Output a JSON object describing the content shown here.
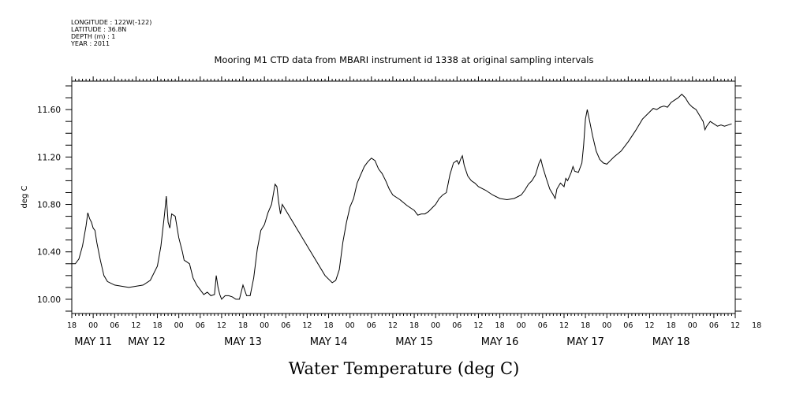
{
  "meta": {
    "longitude": "LONGITUDE : 122W(-122)",
    "latitude": "LATITUDE : 36.8N",
    "depth": "DEPTH (m) : 1",
    "year": "YEAR : 2011"
  },
  "chart_data": {
    "type": "line",
    "title": "Mooring M1 CTD data from MBARI instrument id 1338 at original sampling intervals",
    "xlabel": "Water Temperature (deg C)",
    "ylabel": "deg C",
    "x_unit": "hours since 2011-05-10 18:00",
    "xlim": [
      0,
      186
    ],
    "ylim": [
      9.88,
      11.84
    ],
    "yticks": [
      10.0,
      10.4,
      10.8,
      11.2,
      11.6
    ],
    "ytick_labels": [
      "10.00",
      "10.40",
      "10.80",
      "11.20",
      "11.60"
    ],
    "hour_tick_labels": [
      "18",
      "00",
      "06",
      "12",
      "18",
      "00",
      "06",
      "12",
      "18",
      "00",
      "06",
      "12",
      "18",
      "00",
      "06",
      "12",
      "18",
      "00",
      "06",
      "12",
      "18",
      "00",
      "06",
      "12",
      "18",
      "00",
      "06",
      "12",
      "18",
      "00",
      "06",
      "12",
      "18"
    ],
    "date_labels": [
      {
        "text": "MAY 11",
        "x": 6
      },
      {
        "text": "MAY 12",
        "x": 21
      },
      {
        "text": "MAY 13",
        "x": 48
      },
      {
        "text": "MAY 14",
        "x": 72
      },
      {
        "text": "MAY 15",
        "x": 96
      },
      {
        "text": "MAY 16",
        "x": 120
      },
      {
        "text": "MAY 17",
        "x": 144
      },
      {
        "text": "MAY 18",
        "x": 168
      }
    ],
    "grid": false,
    "series": [
      {
        "points": [
          [
            0,
            10.3
          ],
          [
            1,
            10.3
          ],
          [
            2,
            10.34
          ],
          [
            3,
            10.45
          ],
          [
            4,
            10.62
          ],
          [
            4.5,
            10.73
          ],
          [
            5,
            10.68
          ],
          [
            5.5,
            10.65
          ],
          [
            6,
            10.6
          ],
          [
            6.5,
            10.58
          ],
          [
            7,
            10.48
          ],
          [
            8,
            10.33
          ],
          [
            9,
            10.2
          ],
          [
            10,
            10.15
          ],
          [
            12,
            10.12
          ],
          [
            14,
            10.11
          ],
          [
            16,
            10.1
          ],
          [
            18,
            10.11
          ],
          [
            20,
            10.12
          ],
          [
            22,
            10.16
          ],
          [
            24,
            10.28
          ],
          [
            25,
            10.45
          ],
          [
            26,
            10.72
          ],
          [
            26.5,
            10.87
          ],
          [
            27,
            10.65
          ],
          [
            27.5,
            10.6
          ],
          [
            28,
            10.72
          ],
          [
            29,
            10.7
          ],
          [
            30,
            10.52
          ],
          [
            31,
            10.4
          ],
          [
            31.5,
            10.33
          ],
          [
            32,
            10.32
          ],
          [
            33,
            10.3
          ],
          [
            34,
            10.18
          ],
          [
            35,
            10.12
          ],
          [
            36,
            10.08
          ],
          [
            37,
            10.04
          ],
          [
            38,
            10.06
          ],
          [
            39,
            10.03
          ],
          [
            40,
            10.04
          ],
          [
            40.5,
            10.2
          ],
          [
            41,
            10.1
          ],
          [
            41.5,
            10.04
          ],
          [
            42,
            10.0
          ],
          [
            43,
            10.03
          ],
          [
            44,
            10.03
          ],
          [
            45,
            10.02
          ],
          [
            46,
            10.0
          ],
          [
            47,
            10.0
          ],
          [
            48,
            10.12
          ],
          [
            49,
            10.03
          ],
          [
            50,
            10.03
          ],
          [
            51,
            10.18
          ],
          [
            52,
            10.42
          ],
          [
            53,
            10.58
          ],
          [
            54,
            10.63
          ],
          [
            55,
            10.73
          ],
          [
            56,
            10.8
          ],
          [
            57,
            10.97
          ],
          [
            57.5,
            10.95
          ],
          [
            58,
            10.82
          ],
          [
            58.5,
            10.72
          ],
          [
            59,
            10.8
          ],
          [
            65,
            10.5
          ],
          [
            71,
            10.2
          ],
          [
            73,
            10.14
          ],
          [
            74,
            10.16
          ],
          [
            75,
            10.25
          ],
          [
            76,
            10.48
          ],
          [
            77,
            10.65
          ],
          [
            78,
            10.78
          ],
          [
            79,
            10.85
          ],
          [
            80,
            10.98
          ],
          [
            81,
            11.05
          ],
          [
            82,
            11.12
          ],
          [
            83,
            11.16
          ],
          [
            84,
            11.19
          ],
          [
            85,
            11.17
          ],
          [
            86,
            11.1
          ],
          [
            87,
            11.06
          ],
          [
            88,
            11.0
          ],
          [
            89,
            10.93
          ],
          [
            90,
            10.88
          ],
          [
            92,
            10.84
          ],
          [
            94,
            10.79
          ],
          [
            96,
            10.75
          ],
          [
            97,
            10.71
          ],
          [
            98,
            10.72
          ],
          [
            99,
            10.72
          ],
          [
            100,
            10.74
          ],
          [
            101,
            10.77
          ],
          [
            102,
            10.8
          ],
          [
            103,
            10.85
          ],
          [
            104,
            10.88
          ],
          [
            105,
            10.9
          ],
          [
            106,
            11.05
          ],
          [
            107,
            11.15
          ],
          [
            108,
            11.17
          ],
          [
            108.5,
            11.14
          ],
          [
            109,
            11.18
          ],
          [
            109.5,
            11.21
          ],
          [
            110,
            11.13
          ],
          [
            111,
            11.04
          ],
          [
            112,
            11.0
          ],
          [
            113,
            10.98
          ],
          [
            114,
            10.95
          ],
          [
            116,
            10.92
          ],
          [
            118,
            10.88
          ],
          [
            120,
            10.85
          ],
          [
            122,
            10.84
          ],
          [
            124,
            10.85
          ],
          [
            126,
            10.88
          ],
          [
            127,
            10.92
          ],
          [
            128,
            10.97
          ],
          [
            129,
            11.0
          ],
          [
            130,
            11.05
          ],
          [
            131,
            11.15
          ],
          [
            131.5,
            11.18
          ],
          [
            132,
            11.12
          ],
          [
            133,
            11.02
          ],
          [
            134,
            10.93
          ],
          [
            135,
            10.88
          ],
          [
            135.5,
            10.85
          ],
          [
            136,
            10.93
          ],
          [
            137,
            10.98
          ],
          [
            138,
            10.95
          ],
          [
            138.5,
            11.02
          ],
          [
            139,
            11.0
          ],
          [
            140,
            11.07
          ],
          [
            140.5,
            11.12
          ],
          [
            141,
            11.08
          ],
          [
            142,
            11.07
          ],
          [
            143,
            11.15
          ],
          [
            143.5,
            11.3
          ],
          [
            144,
            11.52
          ],
          [
            144.5,
            11.6
          ],
          [
            145,
            11.53
          ],
          [
            146,
            11.38
          ],
          [
            147,
            11.25
          ],
          [
            148,
            11.18
          ],
          [
            149,
            11.15
          ],
          [
            150,
            11.14
          ],
          [
            151,
            11.17
          ],
          [
            152,
            11.2
          ],
          [
            154,
            11.25
          ],
          [
            156,
            11.33
          ],
          [
            158,
            11.42
          ],
          [
            160,
            11.52
          ],
          [
            162,
            11.58
          ],
          [
            163,
            11.61
          ],
          [
            164,
            11.6
          ],
          [
            165,
            11.62
          ],
          [
            166,
            11.63
          ],
          [
            167,
            11.62
          ],
          [
            168,
            11.66
          ],
          [
            169,
            11.68
          ],
          [
            170,
            11.7
          ],
          [
            171,
            11.73
          ],
          [
            172,
            11.7
          ],
          [
            173,
            11.65
          ],
          [
            174,
            11.62
          ],
          [
            175,
            11.6
          ],
          [
            176,
            11.55
          ],
          [
            177,
            11.5
          ],
          [
            177.5,
            11.43
          ],
          [
            178,
            11.46
          ],
          [
            179,
            11.5
          ],
          [
            180,
            11.48
          ],
          [
            181,
            11.46
          ],
          [
            182,
            11.47
          ],
          [
            183,
            11.46
          ],
          [
            184,
            11.47
          ],
          [
            185,
            11.48
          ]
        ]
      }
    ]
  }
}
